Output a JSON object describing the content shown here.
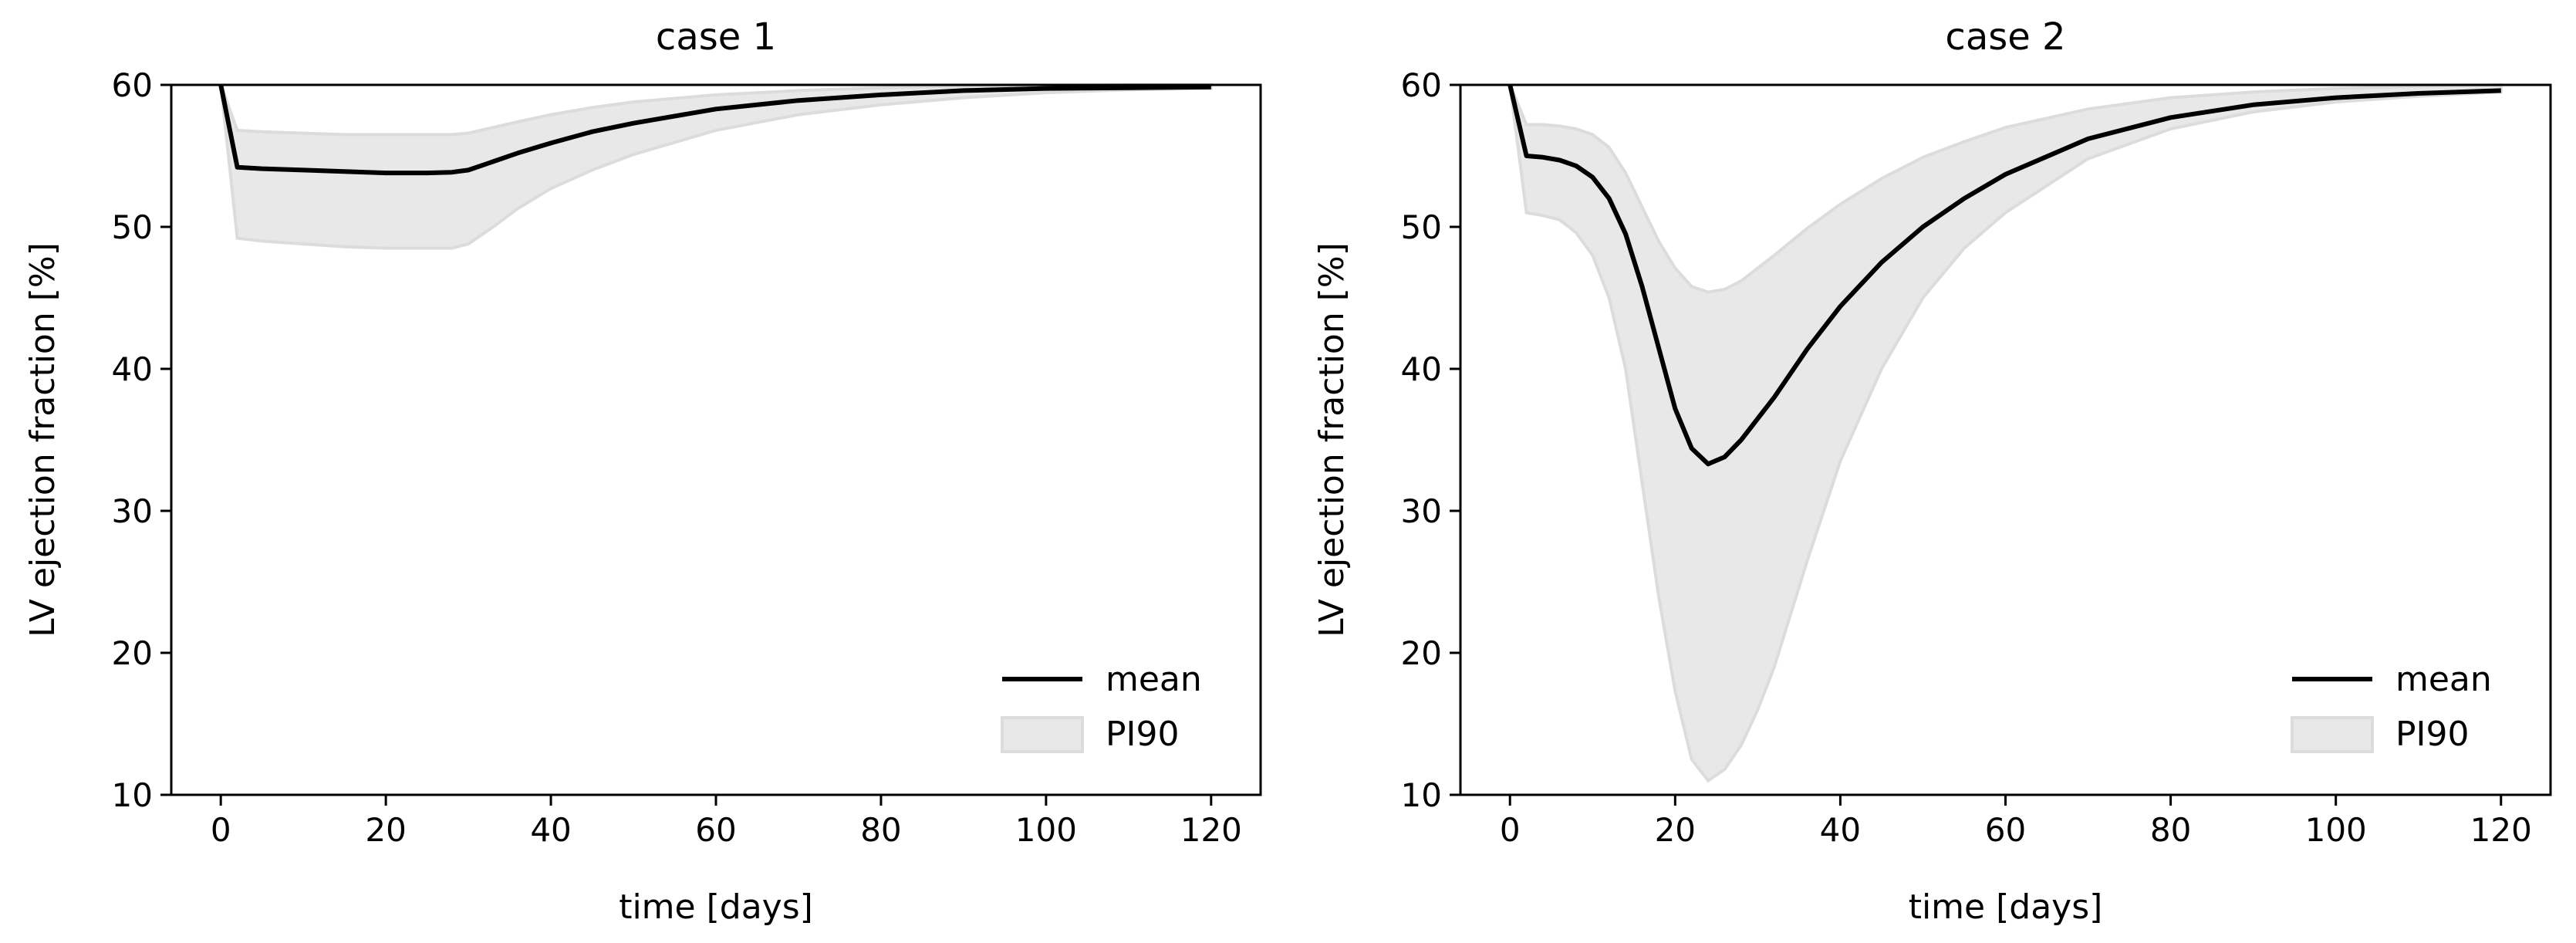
{
  "chart_data": [
    {
      "type": "line",
      "title": "case 1",
      "xlabel": "time [days]",
      "ylabel": "LV ejection fraction [%]",
      "xlim": [
        -6,
        126
      ],
      "ylim": [
        10,
        60
      ],
      "xticks": [
        0,
        20,
        40,
        60,
        80,
        100,
        120
      ],
      "yticks": [
        10,
        20,
        30,
        40,
        50,
        60
      ],
      "legend": {
        "position": "lower-right",
        "entries": [
          "mean",
          "PI90"
        ]
      },
      "series": [
        {
          "name": "mean",
          "kind": "line",
          "color": "#000000",
          "x": [
            0,
            2,
            5,
            10,
            15,
            20,
            25,
            28,
            30,
            33,
            36,
            40,
            45,
            50,
            60,
            70,
            80,
            90,
            100,
            110,
            120
          ],
          "y": [
            60,
            54.2,
            54.1,
            54.0,
            53.9,
            53.8,
            53.8,
            53.85,
            54.0,
            54.6,
            55.2,
            55.9,
            56.7,
            57.3,
            58.3,
            58.9,
            59.3,
            59.6,
            59.75,
            59.8,
            59.85
          ]
        },
        {
          "name": "PI90",
          "kind": "band",
          "color": "#e8e8e8",
          "x": [
            0,
            2,
            5,
            10,
            15,
            20,
            25,
            28,
            30,
            33,
            36,
            40,
            45,
            50,
            60,
            70,
            80,
            90,
            100,
            110,
            120
          ],
          "upper": [
            60,
            56.8,
            56.7,
            56.6,
            56.5,
            56.5,
            56.5,
            56.5,
            56.6,
            57.0,
            57.4,
            57.9,
            58.4,
            58.8,
            59.3,
            59.6,
            59.8,
            59.9,
            59.95,
            60.0,
            60.0
          ],
          "lower": [
            60,
            49.2,
            49.0,
            48.8,
            48.6,
            48.5,
            48.5,
            48.5,
            48.8,
            50.0,
            51.3,
            52.7,
            54.0,
            55.1,
            56.8,
            57.9,
            58.6,
            59.1,
            59.45,
            59.65,
            59.75
          ]
        }
      ]
    },
    {
      "type": "line",
      "title": "case 2",
      "xlabel": "time [days]",
      "ylabel": "LV ejection fraction [%]",
      "xlim": [
        -6,
        126
      ],
      "ylim": [
        10,
        60
      ],
      "xticks": [
        0,
        20,
        40,
        60,
        80,
        100,
        120
      ],
      "yticks": [
        10,
        20,
        30,
        40,
        50,
        60
      ],
      "legend": {
        "position": "lower-right",
        "entries": [
          "mean",
          "PI90"
        ]
      },
      "series": [
        {
          "name": "mean",
          "kind": "line",
          "color": "#000000",
          "x": [
            0,
            2,
            4,
            6,
            8,
            10,
            12,
            14,
            16,
            18,
            20,
            22,
            24,
            26,
            28,
            30,
            32,
            36,
            40,
            45,
            50,
            55,
            60,
            70,
            80,
            90,
            100,
            110,
            120
          ],
          "y": [
            60,
            55.0,
            54.9,
            54.7,
            54.3,
            53.5,
            52.0,
            49.5,
            45.8,
            41.5,
            37.2,
            34.4,
            33.3,
            33.8,
            35.0,
            36.5,
            38.0,
            41.4,
            44.4,
            47.5,
            50.0,
            52.0,
            53.7,
            56.2,
            57.7,
            58.6,
            59.1,
            59.4,
            59.6
          ]
        },
        {
          "name": "PI90",
          "kind": "band",
          "color": "#e8e8e8",
          "x": [
            0,
            2,
            4,
            6,
            8,
            10,
            12,
            14,
            16,
            18,
            20,
            22,
            24,
            26,
            28,
            30,
            32,
            36,
            40,
            45,
            50,
            55,
            60,
            70,
            80,
            90,
            100,
            110,
            120
          ],
          "upper": [
            60,
            57.2,
            57.2,
            57.1,
            56.9,
            56.5,
            55.6,
            53.8,
            51.4,
            49.0,
            47.1,
            45.8,
            45.4,
            45.6,
            46.2,
            47.1,
            48.0,
            49.9,
            51.6,
            53.4,
            54.9,
            56.0,
            57.0,
            58.3,
            59.1,
            59.5,
            59.75,
            59.9,
            60.0
          ],
          "lower": [
            60,
            51.0,
            50.8,
            50.5,
            49.6,
            48.0,
            45.0,
            40.0,
            32.0,
            24.0,
            17.3,
            12.5,
            11.0,
            11.8,
            13.5,
            16.0,
            19.0,
            26.5,
            33.5,
            40.0,
            45.0,
            48.5,
            51.0,
            54.8,
            56.9,
            58.1,
            58.8,
            59.2,
            59.5
          ]
        }
      ]
    }
  ]
}
